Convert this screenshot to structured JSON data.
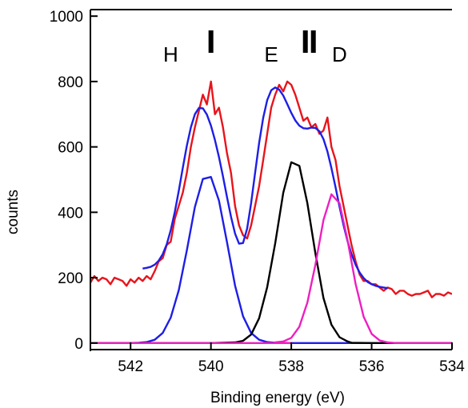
{
  "chart_data": {
    "type": "line",
    "xlabel": "Binding energy (eV)",
    "ylabel": "counts",
    "xlim": [
      543,
      534
    ],
    "ylim": [
      -20,
      1020
    ],
    "x_reversed": true,
    "grid": false,
    "x_ticks": [
      542,
      540,
      538,
      536,
      534
    ],
    "y_ticks": [
      0,
      200,
      400,
      600,
      800,
      1000
    ],
    "peak_labels": [
      {
        "text": "H",
        "x": 541.0,
        "y": 880
      },
      {
        "text": "E",
        "x": 538.5,
        "y": 880
      },
      {
        "text": "D",
        "x": 536.8,
        "y": 880
      }
    ],
    "peak_markers": [
      {
        "x": 540.0,
        "bars": 1
      },
      {
        "x": 537.55,
        "bars": 2
      }
    ],
    "series": [
      {
        "color": "#e8141c",
        "x": [
          543.0,
          542.9,
          542.8,
          542.7,
          542.6,
          542.5,
          542.4,
          542.3,
          542.2,
          542.1,
          542.0,
          541.9,
          541.8,
          541.7,
          541.6,
          541.5,
          541.4,
          541.3,
          541.2,
          541.1,
          541.0,
          540.9,
          540.8,
          540.7,
          540.6,
          540.5,
          540.4,
          540.3,
          540.2,
          540.1,
          540.0,
          539.9,
          539.8,
          539.7,
          539.6,
          539.5,
          539.4,
          539.3,
          539.2,
          539.1,
          539.0,
          538.9,
          538.8,
          538.7,
          538.6,
          538.5,
          538.4,
          538.3,
          538.2,
          538.1,
          538.0,
          537.9,
          537.8,
          537.7,
          537.6,
          537.5,
          537.4,
          537.3,
          537.2,
          537.1,
          537.0,
          536.9,
          536.8,
          536.7,
          536.6,
          536.5,
          536.4,
          536.3,
          536.2,
          536.1,
          536.0,
          535.9,
          535.8,
          535.7,
          535.6,
          535.5,
          535.4,
          535.3,
          535.2,
          535.1,
          535.0,
          534.9,
          534.8,
          534.7,
          534.6,
          534.5,
          534.4,
          534.3,
          534.2,
          534.1,
          534.0
        ],
        "y": [
          185,
          205,
          190,
          200,
          195,
          180,
          200,
          195,
          190,
          175,
          195,
          185,
          200,
          190,
          205,
          195,
          220,
          250,
          260,
          300,
          310,
          380,
          420,
          460,
          520,
          600,
          660,
          710,
          760,
          730,
          800,
          700,
          720,
          660,
          580,
          520,
          420,
          360,
          330,
          320,
          360,
          420,
          480,
          560,
          640,
          720,
          760,
          790,
          770,
          800,
          790,
          760,
          720,
          680,
          690,
          660,
          670,
          640,
          650,
          690,
          600,
          560,
          480,
          420,
          360,
          300,
          250,
          210,
          190,
          190,
          180,
          180,
          170,
          160,
          170,
          165,
          150,
          160,
          160,
          150,
          145,
          150,
          150,
          155,
          160,
          140,
          150,
          150,
          145,
          155,
          150
        ]
      },
      {
        "color": "#1e1ee6",
        "x": [
          541.7,
          541.6,
          541.5,
          541.4,
          541.3,
          541.2,
          541.1,
          541.0,
          540.9,
          540.8,
          540.7,
          540.6,
          540.5,
          540.4,
          540.3,
          540.2,
          540.1,
          540.0,
          539.9,
          539.8,
          539.7,
          539.6,
          539.5,
          539.4,
          539.3,
          539.2,
          539.1,
          539.0,
          538.9,
          538.8,
          538.7,
          538.6,
          538.5,
          538.4,
          538.3,
          538.2,
          538.1,
          538.0,
          537.9,
          537.8,
          537.7,
          537.6,
          537.5,
          537.4,
          537.3,
          537.2,
          537.1,
          537.0,
          536.9,
          536.8,
          536.7,
          536.6,
          536.5,
          536.4,
          536.3,
          536.2,
          536.1,
          536.0,
          535.9,
          535.8,
          535.7,
          535.6
        ],
        "y": [
          228,
          230,
          233,
          240,
          252,
          272,
          302,
          345,
          401,
          466,
          536,
          603,
          660,
          700,
          719,
          718,
          699,
          665,
          621,
          569,
          510,
          446,
          386,
          335,
          304,
          306,
          350,
          428,
          521,
          612,
          689,
          743,
          773,
          782,
          775,
          757,
          731,
          704,
          681,
          665,
          657,
          656,
          659,
          658,
          648,
          624,
          586,
          535,
          477,
          417,
          361,
          312,
          272,
          240,
          216,
          199,
          187,
          180,
          175,
          172,
          170,
          168
        ]
      },
      {
        "color": "#1e1ee6",
        "x": [
          543.0,
          542.5,
          542.0,
          541.8,
          541.6,
          541.4,
          541.2,
          541.0,
          540.8,
          540.6,
          540.4,
          540.2,
          540.0,
          539.8,
          539.6,
          539.4,
          539.2,
          539.0,
          538.8,
          538.6,
          538.4,
          538.2,
          538.0,
          537.5,
          537.0,
          536.0,
          535.0,
          534.0
        ],
        "y": [
          0,
          0,
          0,
          1,
          3,
          10,
          31,
          78,
          162,
          283,
          416,
          502,
          508,
          436,
          308,
          176,
          82,
          31,
          10,
          3,
          1,
          0,
          0,
          0,
          0,
          0,
          0,
          0
        ]
      },
      {
        "color": "#000000",
        "x": [
          543.0,
          540.0,
          539.4,
          539.2,
          539.0,
          538.8,
          538.6,
          538.4,
          538.2,
          538.0,
          537.8,
          537.6,
          537.4,
          537.2,
          537.0,
          536.8,
          536.6,
          536.5,
          536.0,
          535.0,
          534.0
        ],
        "y": [
          0,
          0,
          2,
          7,
          26,
          76,
          171,
          305,
          460,
          553,
          542,
          428,
          275,
          138,
          56,
          18,
          5,
          1,
          0,
          0,
          0
        ]
      },
      {
        "color": "#ee1fc0",
        "x": [
          543.0,
          538.0,
          538.4,
          538.2,
          538.0,
          537.8,
          537.6,
          537.4,
          537.2,
          537.0,
          536.8,
          536.6,
          536.4,
          536.2,
          536.0,
          535.8,
          535.6,
          535.4,
          535.2,
          535.0,
          534.0
        ],
        "y": [
          0,
          0,
          2,
          5,
          16,
          50,
          124,
          239,
          376,
          455,
          428,
          315,
          181,
          81,
          28,
          8,
          2,
          0,
          0,
          0,
          0
        ]
      }
    ]
  }
}
